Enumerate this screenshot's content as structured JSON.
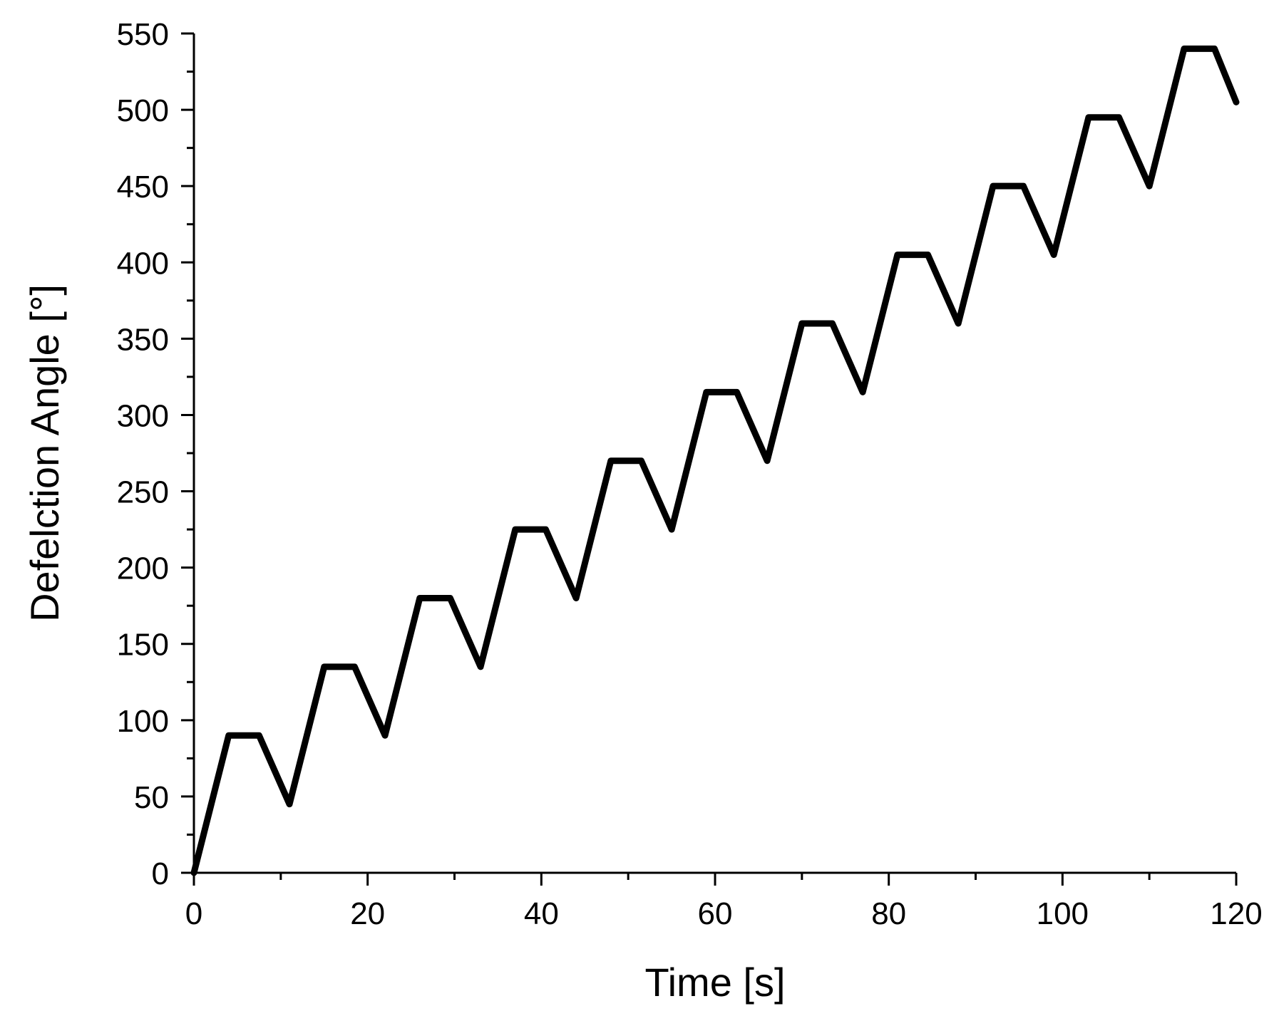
{
  "chart_data": {
    "type": "line",
    "title": "",
    "xlabel": "Time [s]",
    "ylabel": "Defelction Angle [°]",
    "xlim": [
      0,
      120
    ],
    "ylim": [
      0,
      550
    ],
    "xticks": [
      0,
      20,
      40,
      60,
      80,
      100,
      120
    ],
    "yticks": [
      0,
      50,
      100,
      150,
      200,
      250,
      300,
      350,
      400,
      450,
      500,
      550
    ],
    "grid": false,
    "legend": "none",
    "line_color": "#000000",
    "series": [
      {
        "x": [
          0,
          4,
          7.5,
          11,
          15,
          18.5,
          22,
          26,
          29.5,
          33,
          37,
          40.5,
          44,
          48,
          51.5,
          55,
          59,
          62.5,
          66,
          70,
          73.5,
          77,
          81,
          84.5,
          88,
          92,
          95.5,
          99,
          103,
          106.5,
          110,
          114,
          117.5,
          120
        ],
        "y": [
          0,
          90,
          90,
          45,
          135,
          135,
          90,
          180,
          180,
          135,
          225,
          225,
          180,
          270,
          270,
          225,
          315,
          315,
          270,
          360,
          360,
          315,
          405,
          405,
          360,
          450,
          450,
          405,
          495,
          495,
          450,
          540,
          540,
          505
        ]
      }
    ]
  }
}
